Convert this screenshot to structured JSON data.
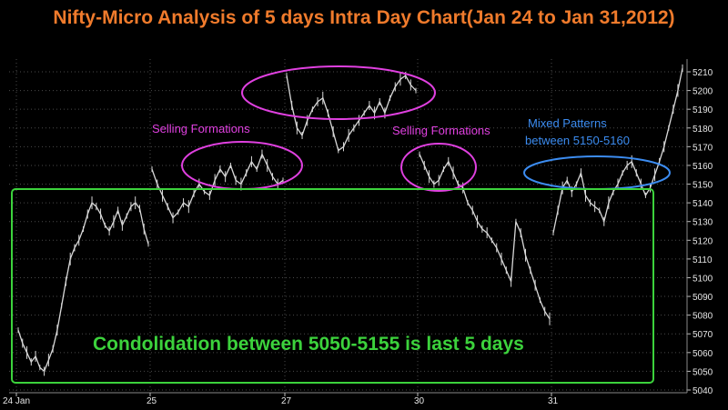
{
  "title": "Nifty-Micro Analysis of 5 days Intra Day Chart(Jan 24 to Jan 31,2012)",
  "colors": {
    "background": "#000000",
    "title": "#f07b2c",
    "price": "#d8d8d8",
    "grid": "#4a4a4a",
    "magenta": "#e040e0",
    "blue": "#3c8cf0",
    "green": "#3cd23c"
  },
  "annotations": {
    "selling_1": "Selling Formations",
    "selling_2": "Selling Formations",
    "mixed_line1": "Mixed Patterns",
    "mixed_line2": "between 5150-5160",
    "consolidation": "Condolidation between 5050-5155 is last 5 days"
  },
  "chart_data": {
    "type": "line",
    "title": "Nifty-Micro Analysis of 5 days Intra Day Chart(Jan 24 to Jan 31,2012)",
    "ylim": [
      5040,
      5215
    ],
    "y_ticks": [
      5040,
      5050,
      5060,
      5070,
      5080,
      5090,
      5100,
      5110,
      5120,
      5130,
      5140,
      5150,
      5160,
      5170,
      5180,
      5190,
      5200,
      5210
    ],
    "x_ticks": [
      "24 Jan",
      "25",
      "27",
      "30",
      "31"
    ],
    "grid": true,
    "series": [
      {
        "values": [
          5072,
          5065,
          5060,
          5055,
          5058,
          5052,
          5050,
          5056,
          5062,
          5072,
          5085,
          5098,
          5110,
          5116,
          5120,
          5126,
          5134,
          5140,
          5138,
          5134,
          5128,
          5125,
          5130,
          5136,
          5128,
          5133,
          5138,
          5140,
          5137,
          5126,
          5118,
          5158,
          5150,
          5144,
          5138,
          5132,
          5135,
          5140,
          5138,
          5145,
          5150,
          5146,
          5144,
          5152,
          5158,
          5154,
          5160,
          5152,
          5150,
          5156,
          5162,
          5158,
          5166,
          5160,
          5154,
          5150,
          5152,
          5208,
          5192,
          5180,
          5176,
          5184,
          5190,
          5194,
          5196,
          5188,
          5178,
          5168,
          5170,
          5176,
          5180,
          5184,
          5188,
          5192,
          5188,
          5194,
          5188,
          5196,
          5202,
          5206,
          5208,
          5203,
          5200,
          5166,
          5160,
          5154,
          5150,
          5152,
          5158,
          5162,
          5156,
          5150,
          5148,
          5140,
          5136,
          5130,
          5126,
          5124,
          5120,
          5116,
          5110,
          5104,
          5098,
          5130,
          5124,
          5112,
          5104,
          5096,
          5088,
          5082,
          5078,
          5124,
          5136,
          5148,
          5152,
          5146,
          5150,
          5156,
          5144,
          5140,
          5138,
          5136,
          5130,
          5140,
          5146,
          5150,
          5156,
          5160,
          5162,
          5156,
          5150,
          5144,
          5148,
          5155,
          5162,
          5170,
          5180,
          5190,
          5200,
          5212
        ]
      }
    ]
  }
}
